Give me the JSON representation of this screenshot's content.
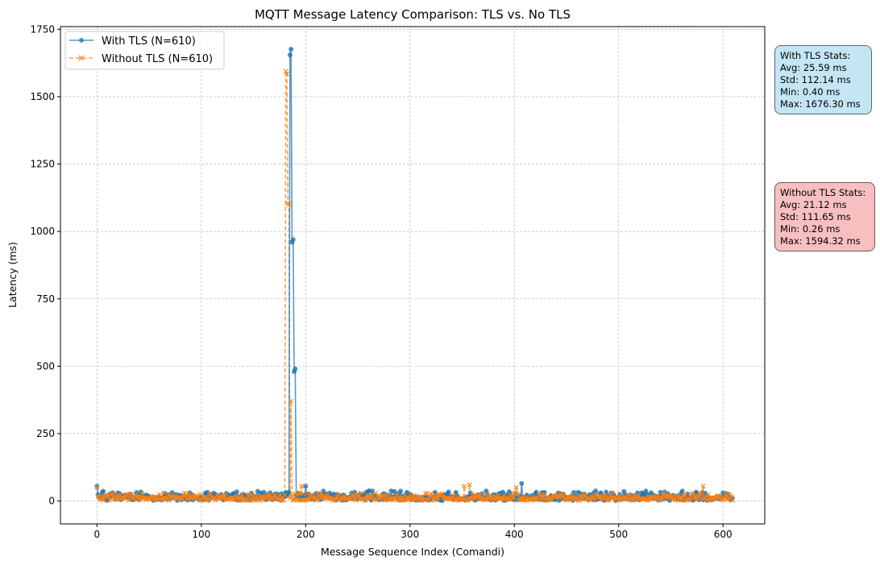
{
  "chart_data": {
    "type": "line",
    "title": "MQTT Message Latency Comparison: TLS vs. No TLS",
    "xlabel": "Message Sequence Index (Comandi)",
    "ylabel": "Latency (ms)",
    "xlim": [
      -35,
      640
    ],
    "ylim": [
      -85,
      1760
    ],
    "xticks": [
      0,
      100,
      200,
      300,
      400,
      500,
      600
    ],
    "yticks": [
      0,
      250,
      500,
      750,
      1000,
      1250,
      1500,
      1750
    ],
    "grid": true,
    "legend_position": "top-left",
    "n_points": 610,
    "series": [
      {
        "name": "With TLS (N=610)",
        "color": "#1f77b4",
        "marker": "circle",
        "linestyle": "solid",
        "baseline_range_ms": [
          2,
          38
        ],
        "spikes": [
          {
            "x": 0,
            "y": 55
          },
          {
            "x": 185,
            "y": 1655
          },
          {
            "x": 186,
            "y": 1676.3
          },
          {
            "x": 187,
            "y": 960
          },
          {
            "x": 188,
            "y": 970
          },
          {
            "x": 189,
            "y": 480
          },
          {
            "x": 190,
            "y": 490
          },
          {
            "x": 200,
            "y": 55
          },
          {
            "x": 407,
            "y": 65
          }
        ]
      },
      {
        "name": "Without TLS (N=610)",
        "color": "#ff7f0e",
        "marker": "x",
        "linestyle": "dashed",
        "baseline_range_ms": [
          2,
          30
        ],
        "spikes": [
          {
            "x": 0,
            "y": 50
          },
          {
            "x": 181,
            "y": 1594.32
          },
          {
            "x": 182,
            "y": 1585
          },
          {
            "x": 183,
            "y": 1105
          },
          {
            "x": 184,
            "y": 1100
          },
          {
            "x": 186,
            "y": 370
          },
          {
            "x": 196,
            "y": 55
          },
          {
            "x": 352,
            "y": 55
          },
          {
            "x": 357,
            "y": 60
          },
          {
            "x": 402,
            "y": 50
          },
          {
            "x": 581,
            "y": 55
          }
        ]
      }
    ]
  },
  "stats_boxes": {
    "tls": {
      "title": "With TLS Stats:",
      "avg": "Avg: 25.59 ms",
      "std": "Std: 112.14 ms",
      "min": "Min: 0.40 ms",
      "max": "Max: 1676.30 ms",
      "color": "#c4e5f3"
    },
    "notls": {
      "title": "Without TLS Stats:",
      "avg": "Avg: 21.12 ms",
      "std": "Std: 111.65 ms",
      "min": "Min: 0.26 ms",
      "max": "Max: 1594.32 ms",
      "color": "#f7bfc0"
    }
  }
}
